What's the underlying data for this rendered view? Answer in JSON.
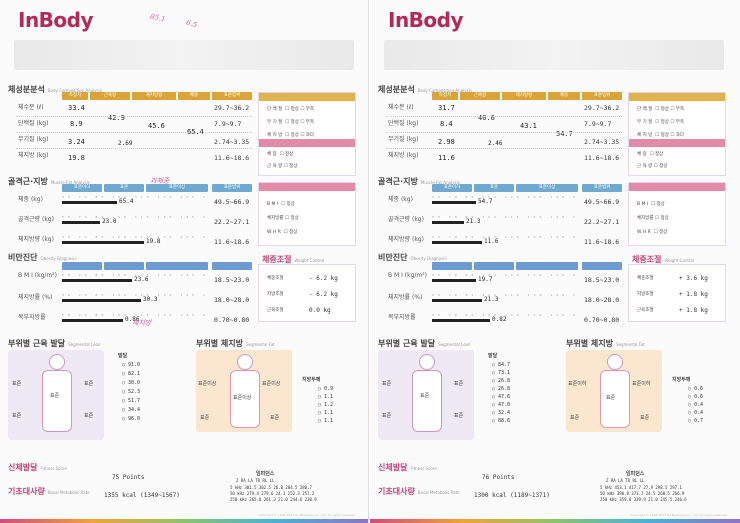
{
  "brand": {
    "logo": "InBody"
  },
  "left": {
    "composition": {
      "title": "체성분분석",
      "subtitle": "Body Composition Analysis",
      "headers": [
        "측정치",
        "근육량",
        "제지방량",
        "체중",
        "표준범위"
      ],
      "rows": [
        {
          "label": "체수분",
          "unit": "(ℓ)",
          "value": "33.4",
          "range": "29.7~36.2"
        },
        {
          "label": "단백질",
          "unit": "(kg)",
          "value": "8.9",
          "range": "7.9~9.7"
        },
        {
          "label": "무기질",
          "unit": "(kg)",
          "value": "3.24",
          "range": "2.74~3.35"
        },
        {
          "label": "체지방",
          "unit": "(kg)",
          "value": "19.8",
          "range": "11.6~18.6"
        }
      ],
      "muscle": "42.9",
      "ffm": "45.6",
      "weight": "65.4",
      "nonosseous": "2.69"
    },
    "muscle_fat": {
      "title": "골격근·지방",
      "subtitle": "Muscle-Fat Analysis",
      "headers": [
        "표준이하",
        "표준",
        "표준이상",
        "표준범위"
      ],
      "rows": [
        {
          "label": "체중",
          "unit": "(kg)",
          "value": "65.4",
          "range": "49.5~66.9",
          "fill": 0.38
        },
        {
          "label": "골격근량",
          "unit": "(kg)",
          "value": "23.0",
          "range": "22.2~27.1",
          "fill": 0.26
        },
        {
          "label": "체지방량",
          "unit": "(kg)",
          "value": "19.8",
          "range": "11.6~18.6",
          "fill": 0.56
        }
      ]
    },
    "obesity": {
      "title": "비만진단",
      "subtitle": "Obesity Diagnosis",
      "rows": [
        {
          "label": "B M I",
          "unit": "(kg/m²)",
          "value": "23.6",
          "range": "18.5~23.0",
          "fill": 0.48
        },
        {
          "label": "체지방률",
          "unit": "(%)",
          "value": "30.3",
          "range": "18.0~28.0",
          "fill": 0.54
        },
        {
          "label": "복부지방률",
          "unit": "",
          "value": "0.86",
          "range": "0.70~0.80",
          "fill": 0.42
        }
      ]
    },
    "weight_control": {
      "title": "체중조절",
      "subtitle": "Weight Control",
      "items": [
        {
          "label": "체중조절",
          "value": "- 6.2 kg"
        },
        {
          "label": "지방조절",
          "value": "- 6.2 kg"
        },
        {
          "label": "근육조절",
          "value": "0.0 kg"
        }
      ]
    },
    "segmental_lean": {
      "title": "부위별 근육 발달",
      "subtitle": "Segmental Lean",
      "labels": {
        "left_arm": "표준",
        "right_arm": "표준",
        "trunk": "표준",
        "left_leg": "표준",
        "right_leg": "표준"
      },
      "side_title": "발달",
      "side_values": [
        "91.0",
        "82.1",
        "30.0",
        "52.3",
        "51.7",
        "34.4",
        "96.0"
      ]
    },
    "segmental_fat": {
      "title": "부위별 체지방",
      "subtitle": "Segmental Fat",
      "labels": {
        "left_arm": "표준이상",
        "right_arm": "표준이상",
        "trunk": "표준이상",
        "left_leg": "표준",
        "right_leg": "표준"
      },
      "side_title": "지방두께",
      "side_values": [
        "0.9",
        "1.1",
        "1.2",
        "1.1",
        "1.1"
      ]
    },
    "fitness": {
      "label": "신체발달",
      "subtitle": "Fitness Score",
      "value": "75",
      "unit": "Points"
    },
    "bmr": {
      "label": "기초대사량",
      "subtitle": "Basal Metabolic Rate",
      "value": "1355",
      "unit": "kcal",
      "range": "(1349~1567)"
    },
    "impedance": {
      "title": "임피던스",
      "header": "Z RA LA TR RL LL",
      "rows": [
        "5 kHz 301.5 302.5 26.0 284.5 280.7",
        "50 kHz 279.4 279.6 24.1 252.3 257.2",
        "250 kHz 265.0 261.3 21.0 244.6 230.9"
      ]
    },
    "copyright": "Copyright © 1996-2007 by Biospace Co., Ltd. All rights reserved.",
    "handwriting": [
      "85.1",
      "6.5",
      "과체중",
      "체지방"
    ]
  },
  "right": {
    "composition": {
      "title": "체성분분석",
      "subtitle": "Body Composition Analysis",
      "headers": [
        "측정치",
        "근육량",
        "제지방량",
        "체중",
        "표준범위"
      ],
      "rows": [
        {
          "label": "체수분",
          "unit": "(ℓ)",
          "value": "31.7",
          "range": "29.7~36.2"
        },
        {
          "label": "단백질",
          "unit": "(kg)",
          "value": "8.4",
          "range": "7.9~9.7"
        },
        {
          "label": "무기질",
          "unit": "(kg)",
          "value": "2.98",
          "range": "2.74~3.35"
        },
        {
          "label": "체지방",
          "unit": "(kg)",
          "value": "11.6",
          "range": "11.6~18.6"
        }
      ],
      "muscle": "40.6",
      "ffm": "43.1",
      "weight": "54.7",
      "nonosseous": "2.46"
    },
    "muscle_fat": {
      "title": "골격근·지방",
      "subtitle": "Muscle-Fat Analysis",
      "headers": [
        "표준이하",
        "표준",
        "표준이상",
        "표준범위"
      ],
      "rows": [
        {
          "label": "체중",
          "unit": "(kg)",
          "value": "54.7",
          "range": "49.5~66.9",
          "fill": 0.3
        },
        {
          "label": "골격근량",
          "unit": "(kg)",
          "value": "21.3",
          "range": "22.2~27.1",
          "fill": 0.22
        },
        {
          "label": "체지방량",
          "unit": "(kg)",
          "value": "11.6",
          "range": "11.6~18.6",
          "fill": 0.34
        }
      ]
    },
    "obesity": {
      "title": "비만진단",
      "subtitle": "Obesity Diagnosis",
      "rows": [
        {
          "label": "B M I",
          "unit": "(kg/m²)",
          "value": "19.7",
          "range": "18.5~23.0",
          "fill": 0.3
        },
        {
          "label": "체지방률",
          "unit": "(%)",
          "value": "21.3",
          "range": "18.0~28.0",
          "fill": 0.34
        },
        {
          "label": "복부지방률",
          "unit": "",
          "value": "0.82",
          "range": "0.70~0.80",
          "fill": 0.4
        }
      ]
    },
    "weight_control": {
      "title": "체중조절",
      "subtitle": "Weight Control",
      "items": [
        {
          "label": "체중조절",
          "value": "+ 3.6 kg"
        },
        {
          "label": "지방조절",
          "value": "+ 1.8 kg"
        },
        {
          "label": "근육조절",
          "value": "+ 1.8 kg"
        }
      ]
    },
    "segmental_lean": {
      "title": "부위별 근육 발달",
      "subtitle": "Segmental Lean",
      "labels": {
        "left_arm": "표준",
        "right_arm": "표준",
        "trunk": "표준",
        "left_leg": "표준",
        "right_leg": "표준"
      },
      "side_title": "발달",
      "side_values": [
        "84.7",
        "73.1",
        "26.8",
        "26.8",
        "47.6",
        "47.0",
        "32.4",
        "88.6"
      ]
    },
    "segmental_fat": {
      "title": "부위별 체지방",
      "subtitle": "Segmental Fat",
      "labels": {
        "left_arm": "표준이하",
        "right_arm": "표준이하",
        "trunk": "표준",
        "left_leg": "표준",
        "right_leg": "표준"
      },
      "side_title": "지방두께",
      "side_values": [
        "0.6",
        "0.6",
        "0.4",
        "0.4",
        "0.7"
      ]
    },
    "fitness": {
      "label": "신체발달",
      "subtitle": "Fitness Score",
      "value": "76",
      "unit": "Points"
    },
    "bmr": {
      "label": "기초대사량",
      "subtitle": "Basal Metabolic Rate",
      "value": "1300",
      "unit": "kcal",
      "range": "(1189~1371)"
    },
    "impedance": {
      "title": "임피던스",
      "header": "Z RA LA TR RL LL",
      "rows": [
        "5 kHz 453.1 417.7 27.9 298.5 297.1",
        "50 kHz 398.8 373.7 24.5 268.5 266.9",
        "250 kHz 359.8 339.9 21.0 245.5 246.6"
      ]
    },
    "copyright": "Copyright © 1996-2007 by Biospace Co., Ltd. All rights reserved."
  },
  "colors": {
    "brand": "#b52a55",
    "comp_header": "#d9a53a",
    "mf_header": "#6fa9cf",
    "ob_header": "#6c9bd2",
    "panel_purple": "#b99ad4",
    "panel_pink": "#e28aa6",
    "lean_bg": "#efe8f5",
    "fat_bg": "#fbe7cf"
  }
}
